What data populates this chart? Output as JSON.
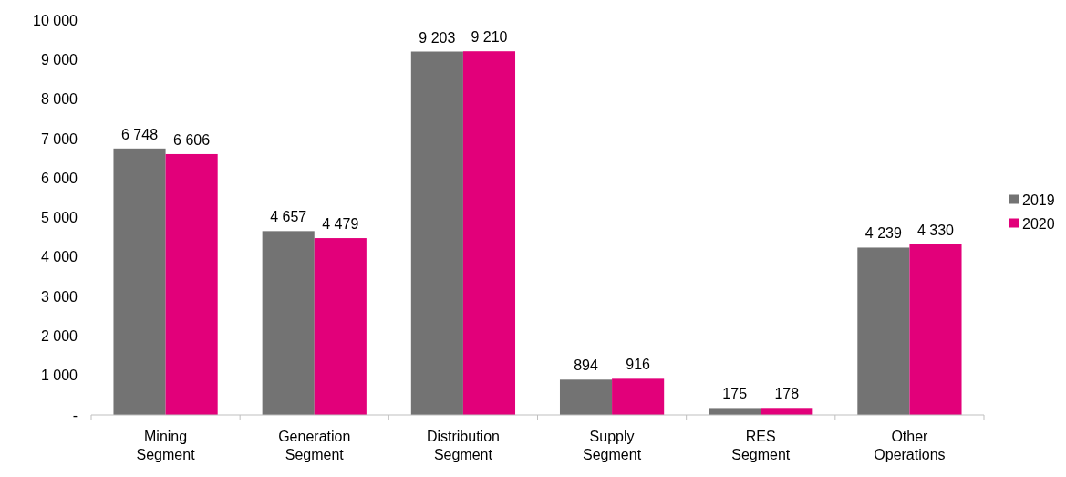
{
  "chart_data": {
    "type": "bar",
    "categories": [
      "Mining Segment",
      "Generation Segment",
      "Distribution Segment",
      "Supply Segment",
      "RES Segment",
      "Other Operations"
    ],
    "series": [
      {
        "name": "2019",
        "color": "#737373",
        "values": [
          6748,
          4657,
          9203,
          894,
          175,
          4239
        ],
        "value_labels": [
          "6 748",
          "4 657",
          "9 203",
          "894",
          "175",
          "4 239"
        ]
      },
      {
        "name": "2020",
        "color": "#e2007a",
        "values": [
          6606,
          4479,
          9210,
          916,
          178,
          4330
        ],
        "value_labels": [
          "6 606",
          "4 479",
          "9 210",
          "916",
          "178",
          "4 330"
        ]
      }
    ],
    "ylim": [
      0,
      10000
    ],
    "yticks": [
      {
        "value": 0,
        "label": "-"
      },
      {
        "value": 1000,
        "label": "1 000"
      },
      {
        "value": 2000,
        "label": "2 000"
      },
      {
        "value": 3000,
        "label": "3 000"
      },
      {
        "value": 4000,
        "label": "4 000"
      },
      {
        "value": 5000,
        "label": "5 000"
      },
      {
        "value": 6000,
        "label": "6 000"
      },
      {
        "value": 7000,
        "label": "7 000"
      },
      {
        "value": 8000,
        "label": "8 000"
      },
      {
        "value": 9000,
        "label": "9 000"
      },
      {
        "value": 10000,
        "label": "10 000"
      }
    ],
    "grid": false,
    "legend": "right"
  }
}
